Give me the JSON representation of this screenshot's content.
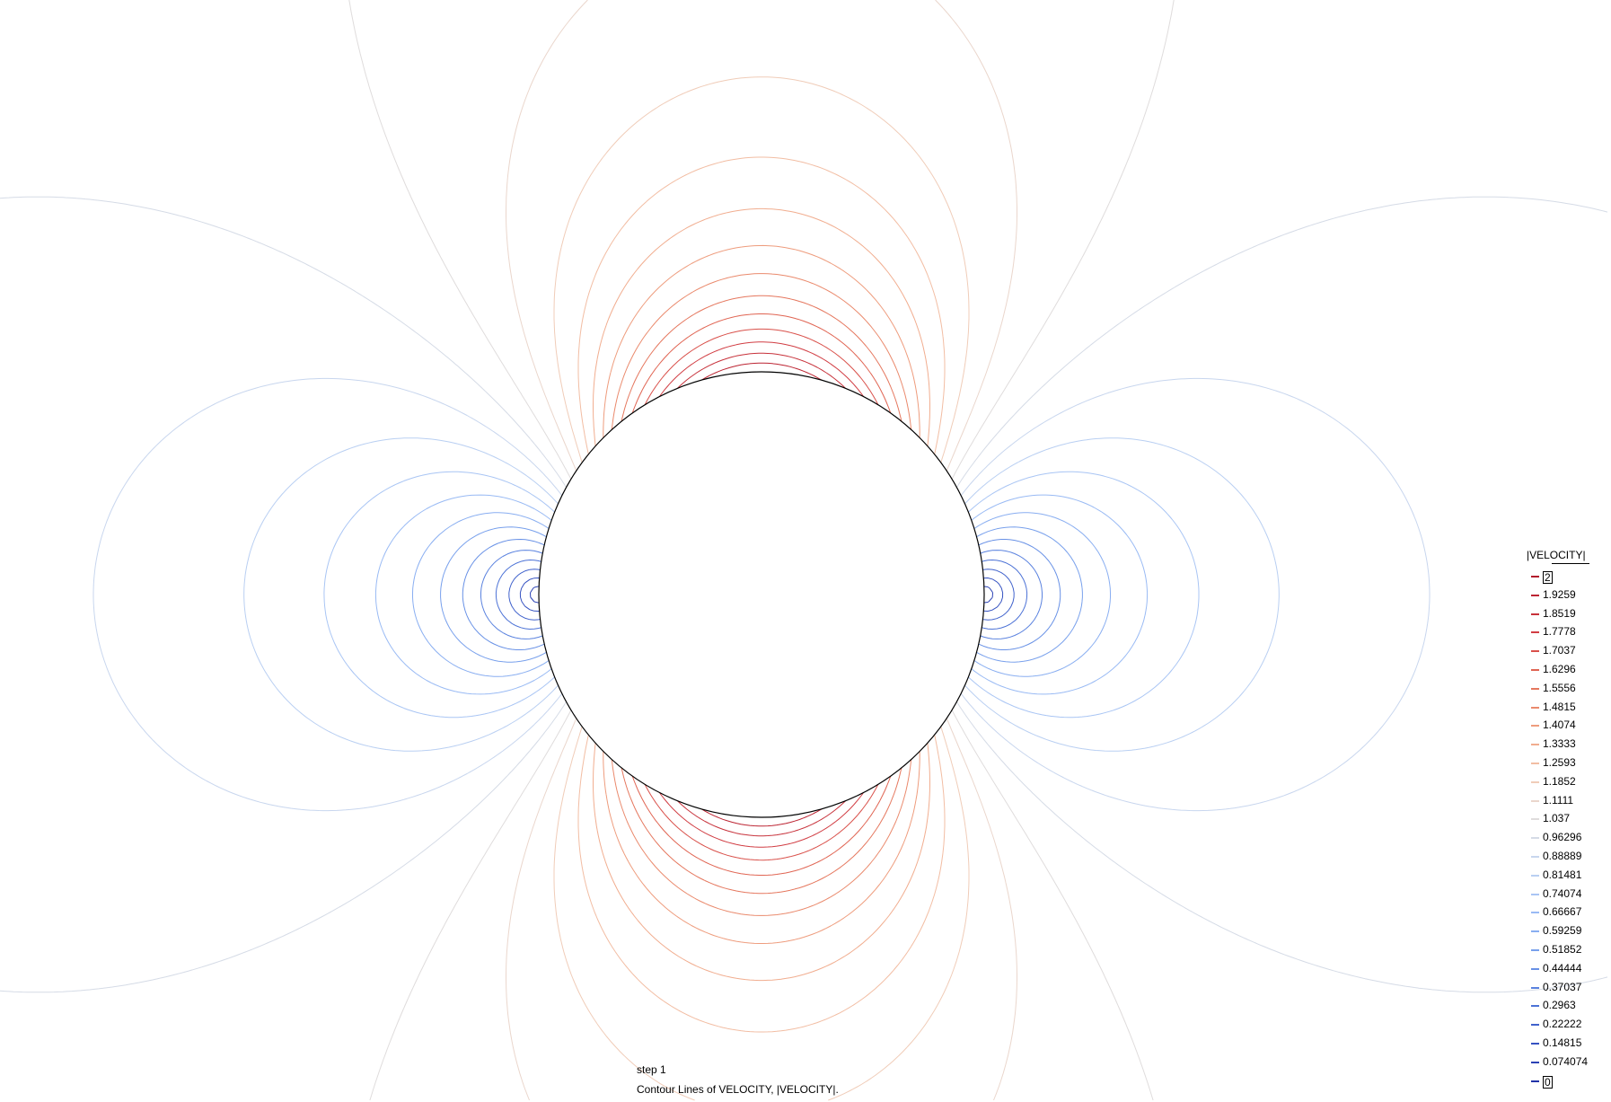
{
  "chart_data": {
    "type": "contour",
    "field": "|VELOCITY|",
    "legend_title": "|VELOCITY|",
    "legend_position": "right",
    "levels": [
      {
        "value": 2,
        "label": "2",
        "color": "#b2182b",
        "boxed": true
      },
      {
        "value": 1.9259,
        "label": "1.9259",
        "color": "#bc2432"
      },
      {
        "value": 1.8519,
        "label": "1.8519",
        "color": "#c7313a"
      },
      {
        "value": 1.7778,
        "label": "1.7778",
        "color": "#d13d43"
      },
      {
        "value": 1.7037,
        "label": "1.7037",
        "color": "#d9504a"
      },
      {
        "value": 1.6296,
        "label": "1.6296",
        "color": "#e06452"
      },
      {
        "value": 1.5556,
        "label": "1.5556",
        "color": "#e5775e"
      },
      {
        "value": 1.4815,
        "label": "1.4815",
        "color": "#ea8a6d"
      },
      {
        "value": 1.4074,
        "label": "1.4074",
        "color": "#ee9c7d"
      },
      {
        "value": 1.3333,
        "label": "1.3333",
        "color": "#f1ad8f"
      },
      {
        "value": 1.2593,
        "label": "1.2593",
        "color": "#f2bda3"
      },
      {
        "value": 1.1852,
        "label": "1.1852",
        "color": "#f0ccb8"
      },
      {
        "value": 1.1111,
        "label": "1.1111",
        "color": "#ead6cc"
      },
      {
        "value": 1.037,
        "label": "1.037",
        "color": "#dfdcdc"
      },
      {
        "value": 0.96296,
        "label": "0.96296",
        "color": "#d5dbe6"
      },
      {
        "value": 0.88889,
        "label": "0.88889",
        "color": "#c8d6ee"
      },
      {
        "value": 0.81481,
        "label": "0.81481",
        "color": "#b9cff2"
      },
      {
        "value": 0.74074,
        "label": "0.74074",
        "color": "#a9c5f4"
      },
      {
        "value": 0.66667,
        "label": "0.66667",
        "color": "#99baf4"
      },
      {
        "value": 0.59259,
        "label": "0.59259",
        "color": "#89aef1"
      },
      {
        "value": 0.51852,
        "label": "0.51852",
        "color": "#78a0ec"
      },
      {
        "value": 0.44444,
        "label": "0.44444",
        "color": "#6891e6"
      },
      {
        "value": 0.37037,
        "label": "0.37037",
        "color": "#5a82df"
      },
      {
        "value": 0.2963,
        "label": "0.2963",
        "color": "#4c72d6"
      },
      {
        "value": 0.22222,
        "label": "0.22222",
        "color": "#4062cc"
      },
      {
        "value": 0.14815,
        "label": "0.14815",
        "color": "#3552c1"
      },
      {
        "value": 0.074074,
        "label": "0.074074",
        "color": "#2b42b5"
      },
      {
        "value": 0,
        "label": "0",
        "color": "#2233a8",
        "boxed": true
      }
    ],
    "annotations": {
      "step": "step 1",
      "caption": "Contour Lines of VELOCITY, |VELOCITY|."
    }
  }
}
